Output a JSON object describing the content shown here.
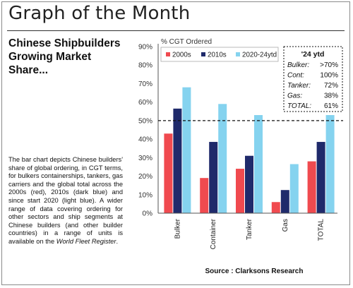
{
  "header": {
    "title": "Graph of the Month"
  },
  "headline": [
    "Chinese Shipbuilders",
    "Growing Market",
    "Share..."
  ],
  "description": {
    "text": "The bar chart depicts Chinese builders' share of global ordering, in CGT terms, for bulkers containerships, tankers, gas carriers and the global total across the 2000s (red), 2010s (dark blue) and since start 2020 (light blue). A wider range of data covering ordering for other sectors and ship segments at Chinese builders (and other builder countries) in a range of units is available on the ",
    "link_text": "World Fleet Register",
    "end": "."
  },
  "source": "Source : Clarksons Research",
  "colors": {
    "s2000": "#f04a4f",
    "s2010": "#1f2a6b",
    "s2020": "#85d3ef"
  },
  "chart_data": {
    "type": "bar",
    "title": "",
    "ylabel": "% CGT Ordered",
    "xlabel": "",
    "categories": [
      "Bulker",
      "Container",
      "Tanker",
      "Gas",
      "TOTAL"
    ],
    "yticks": [
      "0%",
      "10%",
      "20%",
      "30%",
      "40%",
      "50%",
      "60%",
      "70%",
      "80%",
      "90%"
    ],
    "ylim": [
      0,
      90
    ],
    "series": [
      {
        "name": "2000s",
        "color": "#f04a4f",
        "values": [
          43,
          19,
          24,
          6,
          28
        ]
      },
      {
        "name": "2010s",
        "color": "#1f2a6b",
        "values": [
          56.5,
          38.5,
          31,
          12.5,
          38.5
        ]
      },
      {
        "name": "2020-24ytd",
        "color": "#85d3ef",
        "values": [
          68,
          59,
          53,
          26.5,
          53
        ]
      }
    ],
    "reference_line": {
      "value": 50,
      "style": "dashed"
    },
    "legend_position": "top-left",
    "annotation": {
      "title": "'24 ytd",
      "rows": [
        {
          "label": "Bulker:",
          "value": ">70%"
        },
        {
          "label": "Cont:",
          "value": "100%"
        },
        {
          "label": "Tanker:",
          "value": "72%"
        },
        {
          "label": "Gas:",
          "value": "38%"
        },
        {
          "label": "TOTAL:",
          "value": "61%"
        }
      ]
    }
  }
}
